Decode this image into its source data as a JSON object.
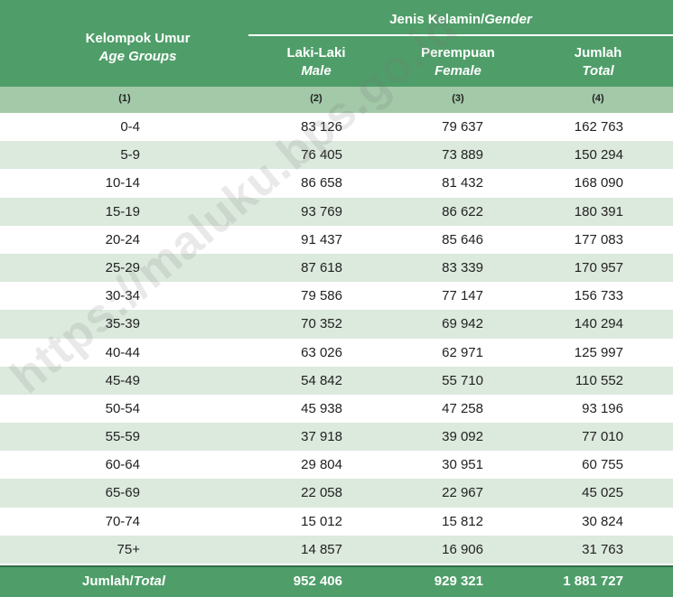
{
  "header": {
    "age_id": "Kelompok Umur",
    "age_en": "Age Groups",
    "gender_id": "Jenis Kelamin/",
    "gender_en": "Gender",
    "male_id": "Laki-Laki",
    "male_en": "Male",
    "female_id": "Perempuan",
    "female_en": "Female",
    "total_id": "Jumlah",
    "total_en": "Total"
  },
  "column_numbers": [
    "(1)",
    "(2)",
    "(3)",
    "(4)"
  ],
  "rows": [
    {
      "age": "0-4",
      "male": "83 126",
      "female": "79 637",
      "total": "162 763"
    },
    {
      "age": "5-9",
      "male": "76 405",
      "female": "73 889",
      "total": "150 294"
    },
    {
      "age": "10-14",
      "male": "86 658",
      "female": "81 432",
      "total": "168 090"
    },
    {
      "age": "15-19",
      "male": "93 769",
      "female": "86 622",
      "total": "180 391"
    },
    {
      "age": "20-24",
      "male": "91 437",
      "female": "85 646",
      "total": "177 083"
    },
    {
      "age": "25-29",
      "male": "87 618",
      "female": "83 339",
      "total": "170 957"
    },
    {
      "age": "30-34",
      "male": "79 586",
      "female": "77 147",
      "total": "156 733"
    },
    {
      "age": "35-39",
      "male": "70 352",
      "female": "69 942",
      "total": "140 294"
    },
    {
      "age": "40-44",
      "male": "63 026",
      "female": "62 971",
      "total": "125 997"
    },
    {
      "age": "45-49",
      "male": "54 842",
      "female": "55 710",
      "total": "110 552"
    },
    {
      "age": "50-54",
      "male": "45 938",
      "female": "47 258",
      "total": "93 196"
    },
    {
      "age": "55-59",
      "male": "37 918",
      "female": "39 092",
      "total": "77 010"
    },
    {
      "age": "60-64",
      "male": "29 804",
      "female": "30 951",
      "total": "60 755"
    },
    {
      "age": "65-69",
      "male": "22 058",
      "female": "22 967",
      "total": "45 025"
    },
    {
      "age": "70-74",
      "male": "15 012",
      "female": "15 812",
      "total": "30 824"
    },
    {
      "age": "75+",
      "male": "14 857",
      "female": "16 906",
      "total": "31 763"
    }
  ],
  "totals": {
    "label_id": "Jumlah/",
    "label_en": "Total",
    "male": "952 406",
    "female": "929 321",
    "total": "1 881 727"
  },
  "watermark": "https://maluku.bps.go.id",
  "colors": {
    "header_green": "#4f9e69",
    "subheader_green": "#a3c9a8",
    "stripe_green": "#dce9dd"
  }
}
